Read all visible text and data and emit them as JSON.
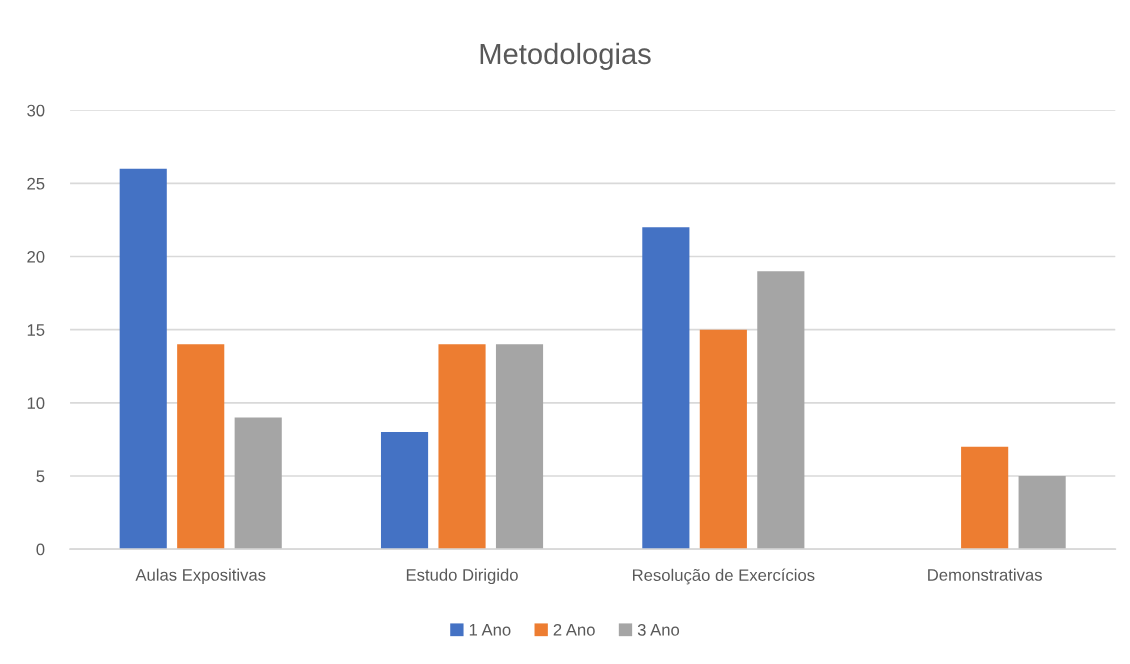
{
  "chart_data": {
    "type": "bar",
    "title": "Metodologias",
    "categories": [
      "Aulas Expositivas",
      "Estudo Dirigido",
      "Resolução de Exercícios",
      "Demonstrativas"
    ],
    "series": [
      {
        "name": "1 Ano",
        "color": "#4472c4",
        "values": [
          26,
          8,
          22,
          null
        ]
      },
      {
        "name": "2 Ano",
        "color": "#ed7d31",
        "values": [
          14,
          14,
          15,
          7
        ]
      },
      {
        "name": "3 Ano",
        "color": "#a5a5a5",
        "values": [
          9,
          14,
          19,
          5
        ]
      }
    ],
    "ylim": [
      0,
      30
    ],
    "yticks": [
      0,
      5,
      10,
      15,
      20,
      25,
      30
    ],
    "grid": "y",
    "legend": "bottom"
  }
}
